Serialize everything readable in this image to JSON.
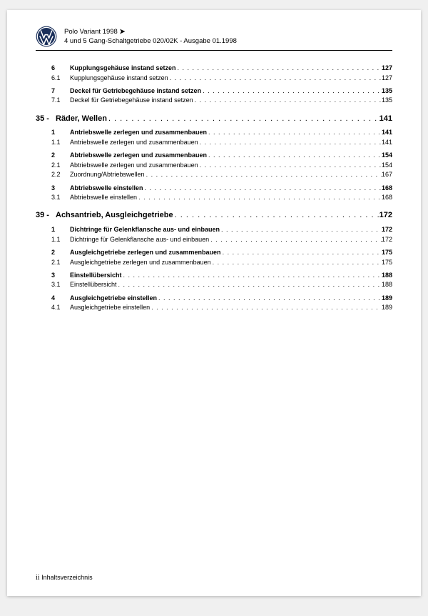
{
  "header": {
    "line1_model": "Polo Variant 1998",
    "line1_arrow": "➤",
    "line2": "4 und 5 Gang-Schaltgetriebe 020/02K - Ausgabe 01.1998"
  },
  "toc": {
    "pre_sections": [
      {
        "type": "section",
        "num": "6",
        "label": "Kupplungsgehäuse instand setzen",
        "page": "127",
        "tight": true
      },
      {
        "type": "sub",
        "num": "6.1",
        "label": "Kupplungsgehäuse instand setzen",
        "page": "127"
      },
      {
        "type": "section",
        "num": "7",
        "label": "Deckel für Getriebegehäuse instand setzen",
        "page": "135"
      },
      {
        "type": "sub",
        "num": "7.1",
        "label": "Deckel für Getriebegehäuse instand setzen",
        "page": "135"
      }
    ],
    "chapters": [
      {
        "num": "35 -",
        "label": "Räder, Wellen",
        "page": "141",
        "items": [
          {
            "type": "section",
            "num": "1",
            "label": "Antriebswelle zerlegen und zusammenbauen",
            "page": "141"
          },
          {
            "type": "sub",
            "num": "1.1",
            "label": "Antriebswelle zerlegen und zusammenbauen",
            "page": "141"
          },
          {
            "type": "section",
            "num": "2",
            "label": "Abtriebswelle zerlegen und zusammenbauen",
            "page": "154"
          },
          {
            "type": "sub",
            "num": "2.1",
            "label": "Abtriebswelle zerlegen und zusammenbauen",
            "page": "154"
          },
          {
            "type": "sub",
            "num": "2.2",
            "label": "Zuordnung/Abtriebswellen",
            "page": "167"
          },
          {
            "type": "section",
            "num": "3",
            "label": "Abtriebswelle einstellen",
            "page": "168"
          },
          {
            "type": "sub",
            "num": "3.1",
            "label": "Abtriebswelle einstellen",
            "page": "168"
          }
        ]
      },
      {
        "num": "39 -",
        "label": "Achsantrieb, Ausgleichgetriebe",
        "page": "172",
        "items": [
          {
            "type": "section",
            "num": "1",
            "label": "Dichtringe für Gelenkflansche aus- und einbauen",
            "page": "172"
          },
          {
            "type": "sub",
            "num": "1.1",
            "label": "Dichtringe für Gelenkflansche aus- und einbauen",
            "page": "172"
          },
          {
            "type": "section",
            "num": "2",
            "label": "Ausgleichgetriebe zerlegen und zusammenbauen",
            "page": "175"
          },
          {
            "type": "sub",
            "num": "2.1",
            "label": "Ausgleichgetriebe zerlegen und zusammenbauen",
            "page": "175"
          },
          {
            "type": "section",
            "num": "3",
            "label": "Einstellübersicht",
            "page": "188"
          },
          {
            "type": "sub",
            "num": "3.1",
            "label": "Einstellübersicht",
            "page": "188"
          },
          {
            "type": "section",
            "num": "4",
            "label": "Ausgleichgetriebe einstellen",
            "page": "189"
          },
          {
            "type": "sub",
            "num": "4.1",
            "label": "Ausgleichgetriebe einstellen",
            "page": "189"
          }
        ]
      }
    ]
  },
  "footer": {
    "page_num": "ii",
    "label": "Inhaltsverzeichnis"
  }
}
